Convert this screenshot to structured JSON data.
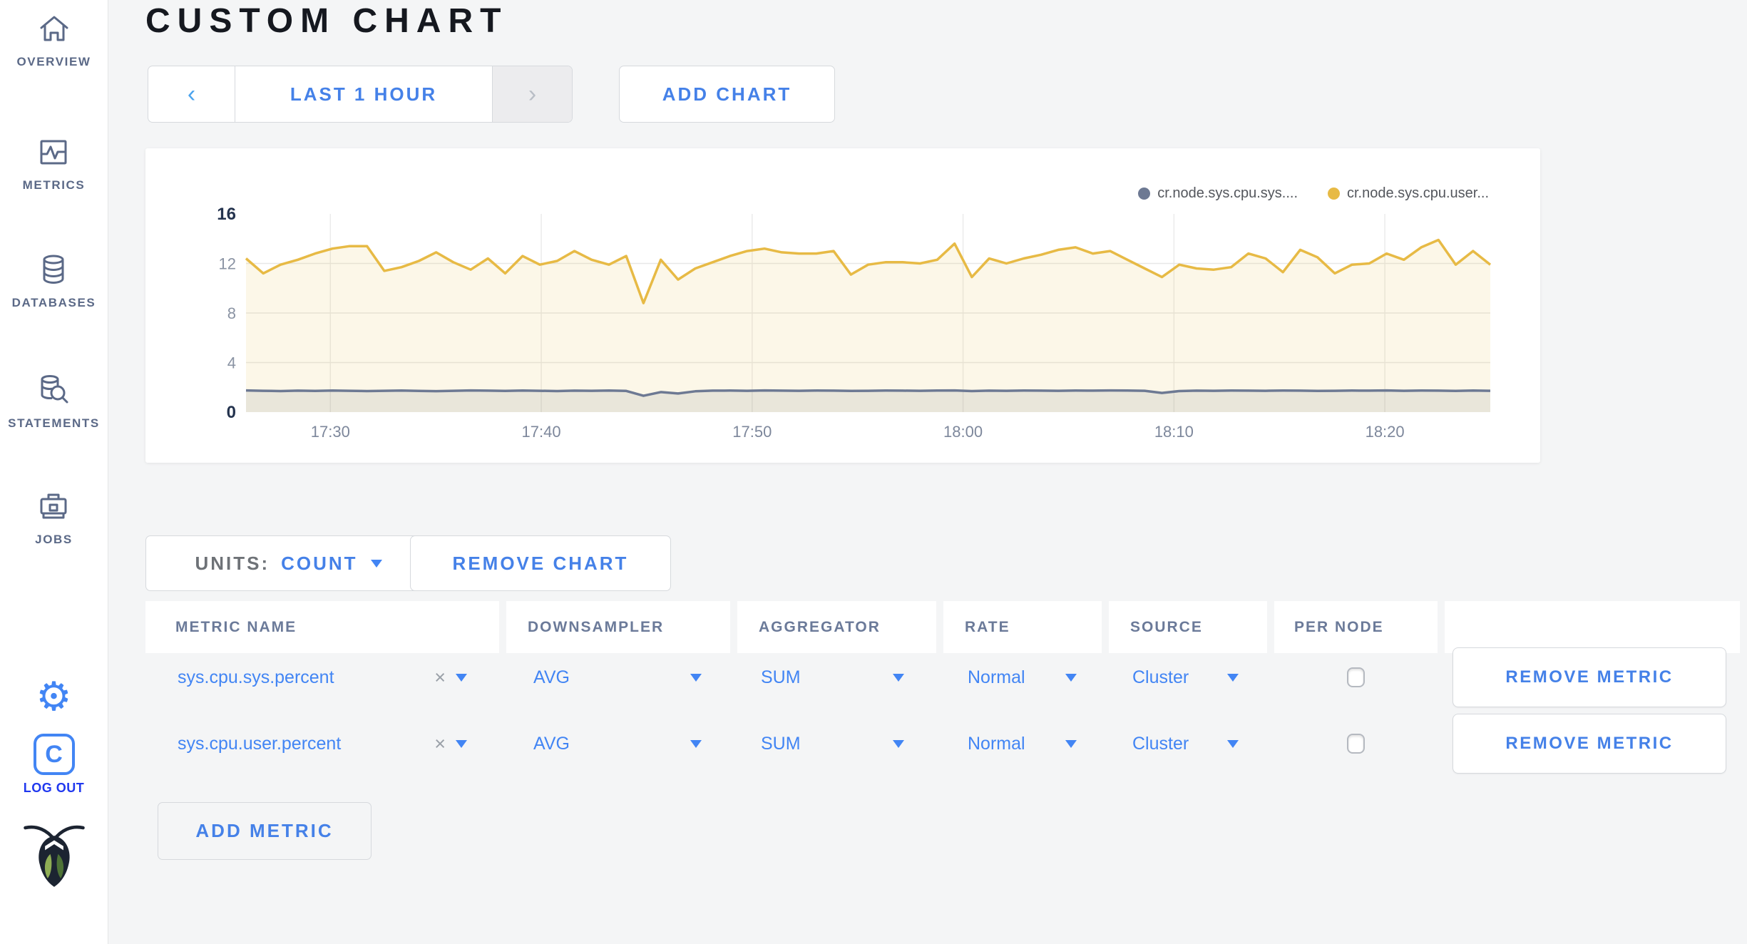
{
  "sidebar": {
    "items": [
      {
        "label": "OVERVIEW",
        "icon": "home-icon"
      },
      {
        "label": "METRICS",
        "icon": "metrics-icon"
      },
      {
        "label": "DATABASES",
        "icon": "database-icon"
      },
      {
        "label": "STATEMENTS",
        "icon": "statements-icon"
      },
      {
        "label": "JOBS",
        "icon": "jobs-icon"
      }
    ],
    "logout": {
      "logo_letter": "C",
      "label": "LOG OUT"
    },
    "gear_glyph": "⚙"
  },
  "header": {
    "title": "CUSTOM CHART"
  },
  "time_selector": {
    "prev_glyph": "‹",
    "label": "LAST 1 HOUR",
    "next_glyph": "›"
  },
  "buttons": {
    "add_chart": "ADD CHART",
    "remove_chart": "REMOVE CHART",
    "add_metric": "ADD METRIC",
    "units_label": "UNITS:",
    "units_value": "COUNT"
  },
  "chart_data": {
    "type": "line",
    "title": "",
    "xlabel": "",
    "ylabel": "",
    "ylim": [
      0,
      16
    ],
    "yticks": [
      0,
      4,
      8,
      12,
      16
    ],
    "grid": true,
    "legend_position": "top-right",
    "x_domain_minutes": [
      0,
      59
    ],
    "xticks": {
      "minutes": [
        4,
        14,
        24,
        34,
        44,
        54
      ],
      "labels": [
        "17:30",
        "17:40",
        "17:50",
        "18:00",
        "18:10",
        "18:20"
      ]
    },
    "series": [
      {
        "name": "cr.node.sys.cpu.sys.percent",
        "legend_label": "cr.node.sys.cpu.sys....",
        "color": "#6d7993",
        "fill_opacity": 0.14,
        "values": [
          1.75,
          1.72,
          1.7,
          1.73,
          1.71,
          1.74,
          1.72,
          1.7,
          1.72,
          1.74,
          1.71,
          1.69,
          1.72,
          1.75,
          1.73,
          1.71,
          1.74,
          1.72,
          1.7,
          1.73,
          1.72,
          1.74,
          1.71,
          1.32,
          1.62,
          1.5,
          1.68,
          1.73,
          1.74,
          1.72,
          1.75,
          1.73,
          1.72,
          1.74,
          1.73,
          1.71,
          1.72,
          1.74,
          1.73,
          1.72,
          1.74,
          1.75,
          1.7,
          1.73,
          1.72,
          1.74,
          1.73,
          1.72,
          1.74,
          1.73,
          1.75,
          1.74,
          1.72,
          1.55,
          1.7,
          1.73,
          1.72,
          1.74,
          1.73,
          1.72,
          1.74,
          1.73,
          1.71,
          1.72,
          1.74,
          1.73,
          1.75,
          1.72,
          1.74,
          1.73,
          1.71,
          1.74,
          1.72
        ]
      },
      {
        "name": "cr.node.sys.cpu.user.percent",
        "legend_label": "cr.node.sys.cpu.user...",
        "color": "#e7ba45",
        "fill_opacity": 0.12,
        "values": [
          12.4,
          11.2,
          11.9,
          12.3,
          12.8,
          13.2,
          13.4,
          13.4,
          11.4,
          11.7,
          12.2,
          12.9,
          12.1,
          11.5,
          12.4,
          11.2,
          12.6,
          11.9,
          12.2,
          13.0,
          12.3,
          11.9,
          12.6,
          8.8,
          12.3,
          10.7,
          11.6,
          12.1,
          12.6,
          13.0,
          13.2,
          12.9,
          12.8,
          12.8,
          13.0,
          11.1,
          11.9,
          12.1,
          12.1,
          12.0,
          12.3,
          13.6,
          10.9,
          12.4,
          12.0,
          12.4,
          12.7,
          13.1,
          13.3,
          12.8,
          13.0,
          12.3,
          11.6,
          10.9,
          11.9,
          11.6,
          11.5,
          11.7,
          12.8,
          12.4,
          11.3,
          13.1,
          12.5,
          11.2,
          11.9,
          12.0,
          12.8,
          12.3,
          13.3,
          13.9,
          11.9,
          13.0,
          11.9
        ]
      }
    ]
  },
  "table": {
    "headers": [
      "METRIC NAME",
      "DOWNSAMPLER",
      "AGGREGATOR",
      "RATE",
      "SOURCE",
      "PER NODE",
      ""
    ],
    "close_glyph": "×",
    "rows": [
      {
        "metric": "sys.cpu.sys.percent",
        "downsampler": "AVG",
        "aggregator": "SUM",
        "rate": "Normal",
        "source": "Cluster",
        "per_node_checked": false,
        "remove_label": "REMOVE METRIC"
      },
      {
        "metric": "sys.cpu.user.percent",
        "downsampler": "AVG",
        "aggregator": "SUM",
        "rate": "Normal",
        "source": "Cluster",
        "per_node_checked": false,
        "remove_label": "REMOVE METRIC"
      }
    ]
  }
}
